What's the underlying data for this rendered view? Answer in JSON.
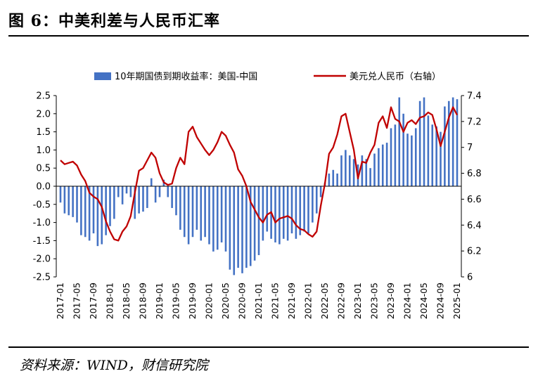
{
  "figure": {
    "title": "图 6：中美利差与人民币汇率",
    "source": "资料来源：WIND，财信研究院"
  },
  "chart_data": {
    "type": "bar+line",
    "categories": [
      "2017-01",
      "2017-02",
      "2017-03",
      "2017-04",
      "2017-05",
      "2017-06",
      "2017-07",
      "2017-08",
      "2017-09",
      "2017-10",
      "2017-11",
      "2017-12",
      "2018-01",
      "2018-02",
      "2018-03",
      "2018-04",
      "2018-05",
      "2018-06",
      "2018-07",
      "2018-08",
      "2018-09",
      "2018-10",
      "2018-11",
      "2018-12",
      "2019-01",
      "2019-02",
      "2019-03",
      "2019-04",
      "2019-05",
      "2019-06",
      "2019-07",
      "2019-08",
      "2019-09",
      "2019-10",
      "2019-11",
      "2019-12",
      "2020-01",
      "2020-02",
      "2020-03",
      "2020-04",
      "2020-05",
      "2020-06",
      "2020-07",
      "2020-08",
      "2020-09",
      "2020-10",
      "2020-11",
      "2020-12",
      "2021-01",
      "2021-02",
      "2021-03",
      "2021-04",
      "2021-05",
      "2021-06",
      "2021-07",
      "2021-08",
      "2021-09",
      "2021-10",
      "2021-11",
      "2021-12",
      "2022-01",
      "2022-02",
      "2022-03",
      "2022-04",
      "2022-05",
      "2022-06",
      "2022-07",
      "2022-08",
      "2022-09",
      "2022-10",
      "2022-11",
      "2022-12",
      "2023-01",
      "2023-02",
      "2023-03",
      "2023-04",
      "2023-05",
      "2023-06",
      "2023-07",
      "2023-08",
      "2023-09",
      "2023-10",
      "2023-11",
      "2023-12",
      "2024-01",
      "2024-02",
      "2024-03",
      "2024-04",
      "2024-05",
      "2024-06",
      "2024-07",
      "2024-08",
      "2024-09",
      "2024-10",
      "2024-11",
      "2024-12",
      "2025-01"
    ],
    "tick_labels": [
      "2017-01",
      "2017-05",
      "2017-09",
      "2018-01",
      "2018-05",
      "2018-09",
      "2019-01",
      "2019-05",
      "2019-09",
      "2020-01",
      "2020-05",
      "2020-09",
      "2021-01",
      "2021-05",
      "2021-09",
      "2022-01",
      "2022-05",
      "2022-09",
      "2023-01",
      "2023-05",
      "2023-09",
      "2024-01",
      "2024-05",
      "2024-09",
      "2025-01"
    ],
    "series": [
      {
        "name": "10年期国债到期收益率：美国-中国",
        "type": "bar",
        "axis": "left",
        "color": "#4472C4",
        "values": [
          -0.45,
          -0.75,
          -0.8,
          -0.85,
          -1.0,
          -1.35,
          -1.4,
          -1.5,
          -1.3,
          -1.65,
          -1.6,
          -1.35,
          -1.1,
          -0.9,
          -0.3,
          -0.5,
          -0.2,
          -0.3,
          -0.9,
          -0.75,
          -0.7,
          -0.6,
          0.22,
          -0.45,
          -0.3,
          0.18,
          -0.3,
          -0.6,
          -0.8,
          -1.2,
          -1.4,
          -1.6,
          -1.4,
          -1.2,
          -1.5,
          -1.4,
          -1.6,
          -1.8,
          -1.75,
          -1.55,
          -1.8,
          -2.3,
          -2.45,
          -2.25,
          -2.4,
          -2.25,
          -2.2,
          -2.05,
          -1.9,
          -1.5,
          -1.25,
          -1.45,
          -1.55,
          -1.6,
          -1.45,
          -1.5,
          -1.3,
          -1.45,
          -1.35,
          -1.25,
          -1.3,
          -1.0,
          -0.75,
          -0.3,
          0.1,
          0.35,
          0.45,
          0.35,
          0.85,
          1.0,
          0.85,
          0.75,
          0.6,
          0.85,
          0.75,
          0.5,
          0.9,
          1.05,
          1.15,
          1.2,
          1.6,
          1.7,
          2.45,
          2.0,
          1.45,
          1.4,
          1.6,
          2.35,
          2.45,
          1.95,
          1.7,
          1.65,
          1.5,
          2.2,
          2.35,
          2.45,
          2.4
        ]
      },
      {
        "name": "美元兑人民币（右轴）",
        "type": "line",
        "axis": "right",
        "color": "#C00000",
        "values": [
          6.9,
          6.87,
          6.88,
          6.89,
          6.86,
          6.79,
          6.74,
          6.65,
          6.62,
          6.6,
          6.54,
          6.43,
          6.35,
          6.29,
          6.28,
          6.35,
          6.39,
          6.47,
          6.65,
          6.82,
          6.84,
          6.9,
          6.96,
          6.92,
          6.8,
          6.73,
          6.71,
          6.72,
          6.84,
          6.92,
          6.87,
          7.12,
          7.16,
          7.08,
          7.03,
          6.98,
          6.94,
          6.98,
          7.04,
          7.12,
          7.09,
          7.02,
          6.96,
          6.83,
          6.78,
          6.7,
          6.58,
          6.52,
          6.46,
          6.42,
          6.48,
          6.5,
          6.42,
          6.45,
          6.46,
          6.47,
          6.45,
          6.4,
          6.37,
          6.36,
          6.33,
          6.31,
          6.35,
          6.55,
          6.72,
          6.95,
          7.0,
          7.1,
          7.24,
          7.26,
          7.12,
          6.98,
          6.76,
          6.89,
          6.88,
          6.96,
          7.02,
          7.19,
          7.24,
          7.15,
          7.31,
          7.22,
          7.2,
          7.12,
          7.19,
          7.21,
          7.18,
          7.23,
          7.24,
          7.27,
          7.25,
          7.14,
          7.01,
          7.12,
          7.23,
          7.31,
          7.25
        ]
      }
    ],
    "left_axis": {
      "ylim": [
        -2.5,
        2.5
      ],
      "ticks": [
        "-2.5",
        "-2.0",
        "-1.5",
        "-1.0",
        "-0.5",
        "0.0",
        "0.5",
        "1.0",
        "1.5",
        "2.0",
        "2.5"
      ]
    },
    "right_axis": {
      "ylim": [
        6.0,
        7.4
      ],
      "ticks": [
        "6",
        "6.2",
        "6.4",
        "6.6",
        "6.8",
        "7",
        "7.2",
        "7.4"
      ]
    },
    "legend_position": "top",
    "grid": false
  }
}
